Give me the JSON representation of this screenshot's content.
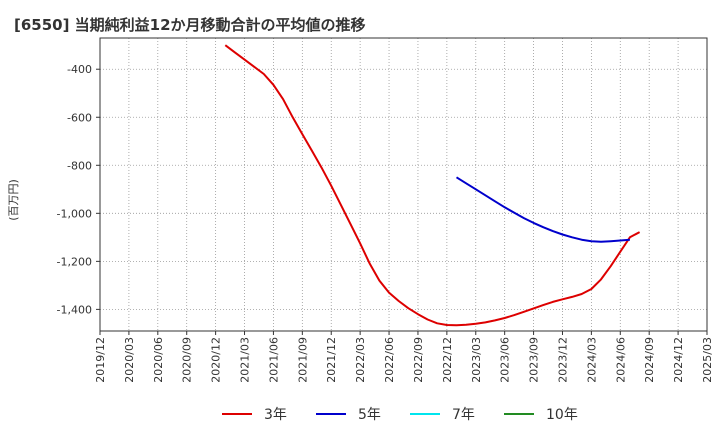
{
  "chart_data": {
    "type": "line",
    "title": "[6550]  当期純利益12か月移動合計の平均値の推移",
    "ylabel": "(百万円)",
    "xlabel": "",
    "ylim": [
      -1490,
      -270
    ],
    "y_ticks": [
      -400,
      -600,
      -800,
      -1000,
      -1200,
      -1400
    ],
    "y_tick_labels": [
      "-400",
      "-600",
      "-800",
      "-1,000",
      "-1,200",
      "-1,400"
    ],
    "x_ticks": [
      "2019/12",
      "2020/03",
      "2020/06",
      "2020/09",
      "2020/12",
      "2021/03",
      "2021/06",
      "2021/09",
      "2021/12",
      "2022/03",
      "2022/06",
      "2022/09",
      "2022/12",
      "2023/03",
      "2023/06",
      "2023/09",
      "2023/12",
      "2024/03",
      "2024/06",
      "2024/09",
      "2024/12",
      "2025/03"
    ],
    "grid": true,
    "legend_position": "bottom",
    "series": [
      {
        "name": "3年",
        "color": "#dd0000",
        "points": [
          [
            "2021/01",
            -300
          ],
          [
            "2021/02",
            -330
          ],
          [
            "2021/03",
            -360
          ],
          [
            "2021/04",
            -390
          ],
          [
            "2021/05",
            -420
          ],
          [
            "2021/06",
            -465
          ],
          [
            "2021/07",
            -525
          ],
          [
            "2021/08",
            -600
          ],
          [
            "2021/09",
            -670
          ],
          [
            "2021/10",
            -740
          ],
          [
            "2021/11",
            -810
          ],
          [
            "2021/12",
            -885
          ],
          [
            "2022/01",
            -965
          ],
          [
            "2022/02",
            -1045
          ],
          [
            "2022/03",
            -1125
          ],
          [
            "2022/04",
            -1210
          ],
          [
            "2022/05",
            -1280
          ],
          [
            "2022/06",
            -1330
          ],
          [
            "2022/07",
            -1365
          ],
          [
            "2022/08",
            -1395
          ],
          [
            "2022/09",
            -1420
          ],
          [
            "2022/10",
            -1442
          ],
          [
            "2022/11",
            -1458
          ],
          [
            "2022/12",
            -1465
          ],
          [
            "2023/01",
            -1466
          ],
          [
            "2023/02",
            -1464
          ],
          [
            "2023/03",
            -1460
          ],
          [
            "2023/04",
            -1454
          ],
          [
            "2023/05",
            -1446
          ],
          [
            "2023/06",
            -1436
          ],
          [
            "2023/07",
            -1424
          ],
          [
            "2023/08",
            -1410
          ],
          [
            "2023/09",
            -1396
          ],
          [
            "2023/10",
            -1382
          ],
          [
            "2023/11",
            -1369
          ],
          [
            "2023/12",
            -1358
          ],
          [
            "2024/01",
            -1348
          ],
          [
            "2024/02",
            -1336
          ],
          [
            "2024/03",
            -1315
          ],
          [
            "2024/04",
            -1275
          ],
          [
            "2024/05",
            -1220
          ],
          [
            "2024/06",
            -1160
          ],
          [
            "2024/07",
            -1100
          ],
          [
            "2024/08",
            -1078
          ]
        ]
      },
      {
        "name": "5年",
        "color": "#0000cc",
        "points": [
          [
            "2023/01",
            -850
          ],
          [
            "2023/02",
            -875
          ],
          [
            "2023/03",
            -900
          ],
          [
            "2023/04",
            -925
          ],
          [
            "2023/05",
            -950
          ],
          [
            "2023/06",
            -975
          ],
          [
            "2023/07",
            -998
          ],
          [
            "2023/08",
            -1020
          ],
          [
            "2023/09",
            -1040
          ],
          [
            "2023/10",
            -1058
          ],
          [
            "2023/11",
            -1074
          ],
          [
            "2023/12",
            -1088
          ],
          [
            "2024/01",
            -1100
          ],
          [
            "2024/02",
            -1110
          ],
          [
            "2024/03",
            -1116
          ],
          [
            "2024/04",
            -1118
          ],
          [
            "2024/05",
            -1116
          ],
          [
            "2024/06",
            -1113
          ],
          [
            "2024/07",
            -1110
          ]
        ]
      },
      {
        "name": "7年",
        "color": "#00e5ee",
        "points": []
      },
      {
        "name": "10年",
        "color": "#228b22",
        "points": []
      }
    ]
  }
}
